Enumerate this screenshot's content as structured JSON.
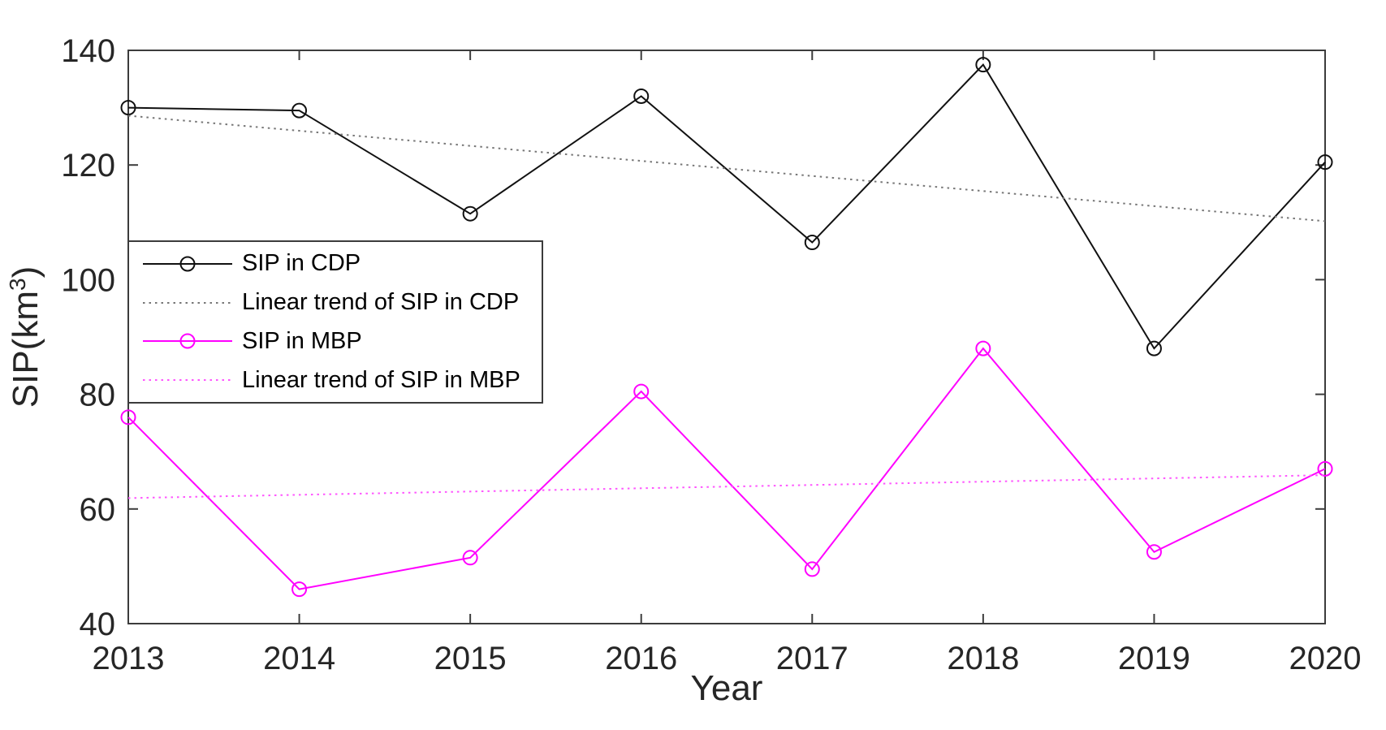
{
  "figure": {
    "background": "#ffffff",
    "axis_color": "#3c3c3c",
    "text_color": "#262626"
  },
  "chart_data": {
    "type": "line",
    "title": "",
    "xlabel": "Year",
    "ylabel": "SIP(km³)",
    "ylabel_parts": {
      "base": "SIP(km",
      "sup": "3",
      "close": ")"
    },
    "xlim": [
      2013,
      2020
    ],
    "ylim": [
      40,
      140
    ],
    "xticks": [
      2013,
      2014,
      2015,
      2016,
      2017,
      2018,
      2019,
      2020
    ],
    "yticks": [
      40,
      60,
      80,
      100,
      120,
      140
    ],
    "grid": false,
    "legend_position": "upper-left",
    "series": [
      {
        "name": "SIP in CDP",
        "color": "#111111",
        "style": "solid",
        "marker": "circle",
        "x": [
          2013,
          2014,
          2015,
          2016,
          2017,
          2018,
          2019,
          2020
        ],
        "values": [
          130,
          129.5,
          111.5,
          132,
          106.5,
          137.5,
          88,
          120.5
        ]
      },
      {
        "name": "Linear trend of SIP in CDP",
        "color": "#777777",
        "style": "dotted",
        "marker": "none",
        "x": [
          2013,
          2020
        ],
        "values": [
          128.6,
          110.2
        ]
      },
      {
        "name": "SIP in MBP",
        "color": "#ff00ff",
        "style": "solid",
        "marker": "circle",
        "x": [
          2013,
          2014,
          2015,
          2016,
          2017,
          2018,
          2019,
          2020
        ],
        "values": [
          76,
          46,
          51.5,
          80.5,
          49.5,
          88,
          52.5,
          67
        ]
      },
      {
        "name": "Linear trend of SIP in MBP",
        "color": "#ff55ff",
        "style": "dotted",
        "marker": "none",
        "x": [
          2013,
          2020
        ],
        "values": [
          61.9,
          65.9
        ]
      }
    ]
  }
}
